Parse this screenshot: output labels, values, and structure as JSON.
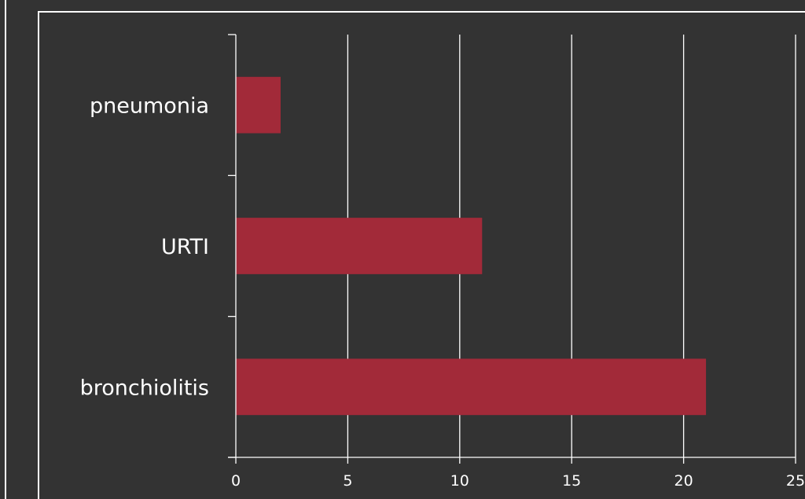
{
  "colors": {
    "background": "#333333",
    "bar": "#a22a39",
    "axis": "#ffffff",
    "grid": "#ffffff"
  },
  "chart_data": {
    "type": "bar",
    "orientation": "horizontal",
    "categories": [
      "pneumonia",
      "URTI",
      "bronchiolitis"
    ],
    "values": [
      2,
      11,
      21
    ],
    "title": "",
    "xlabel": "",
    "ylabel": "",
    "xlim": [
      0,
      25
    ],
    "xticks": [
      0,
      5,
      10,
      15,
      20,
      25
    ],
    "grid": "vertical",
    "legend": "none"
  }
}
